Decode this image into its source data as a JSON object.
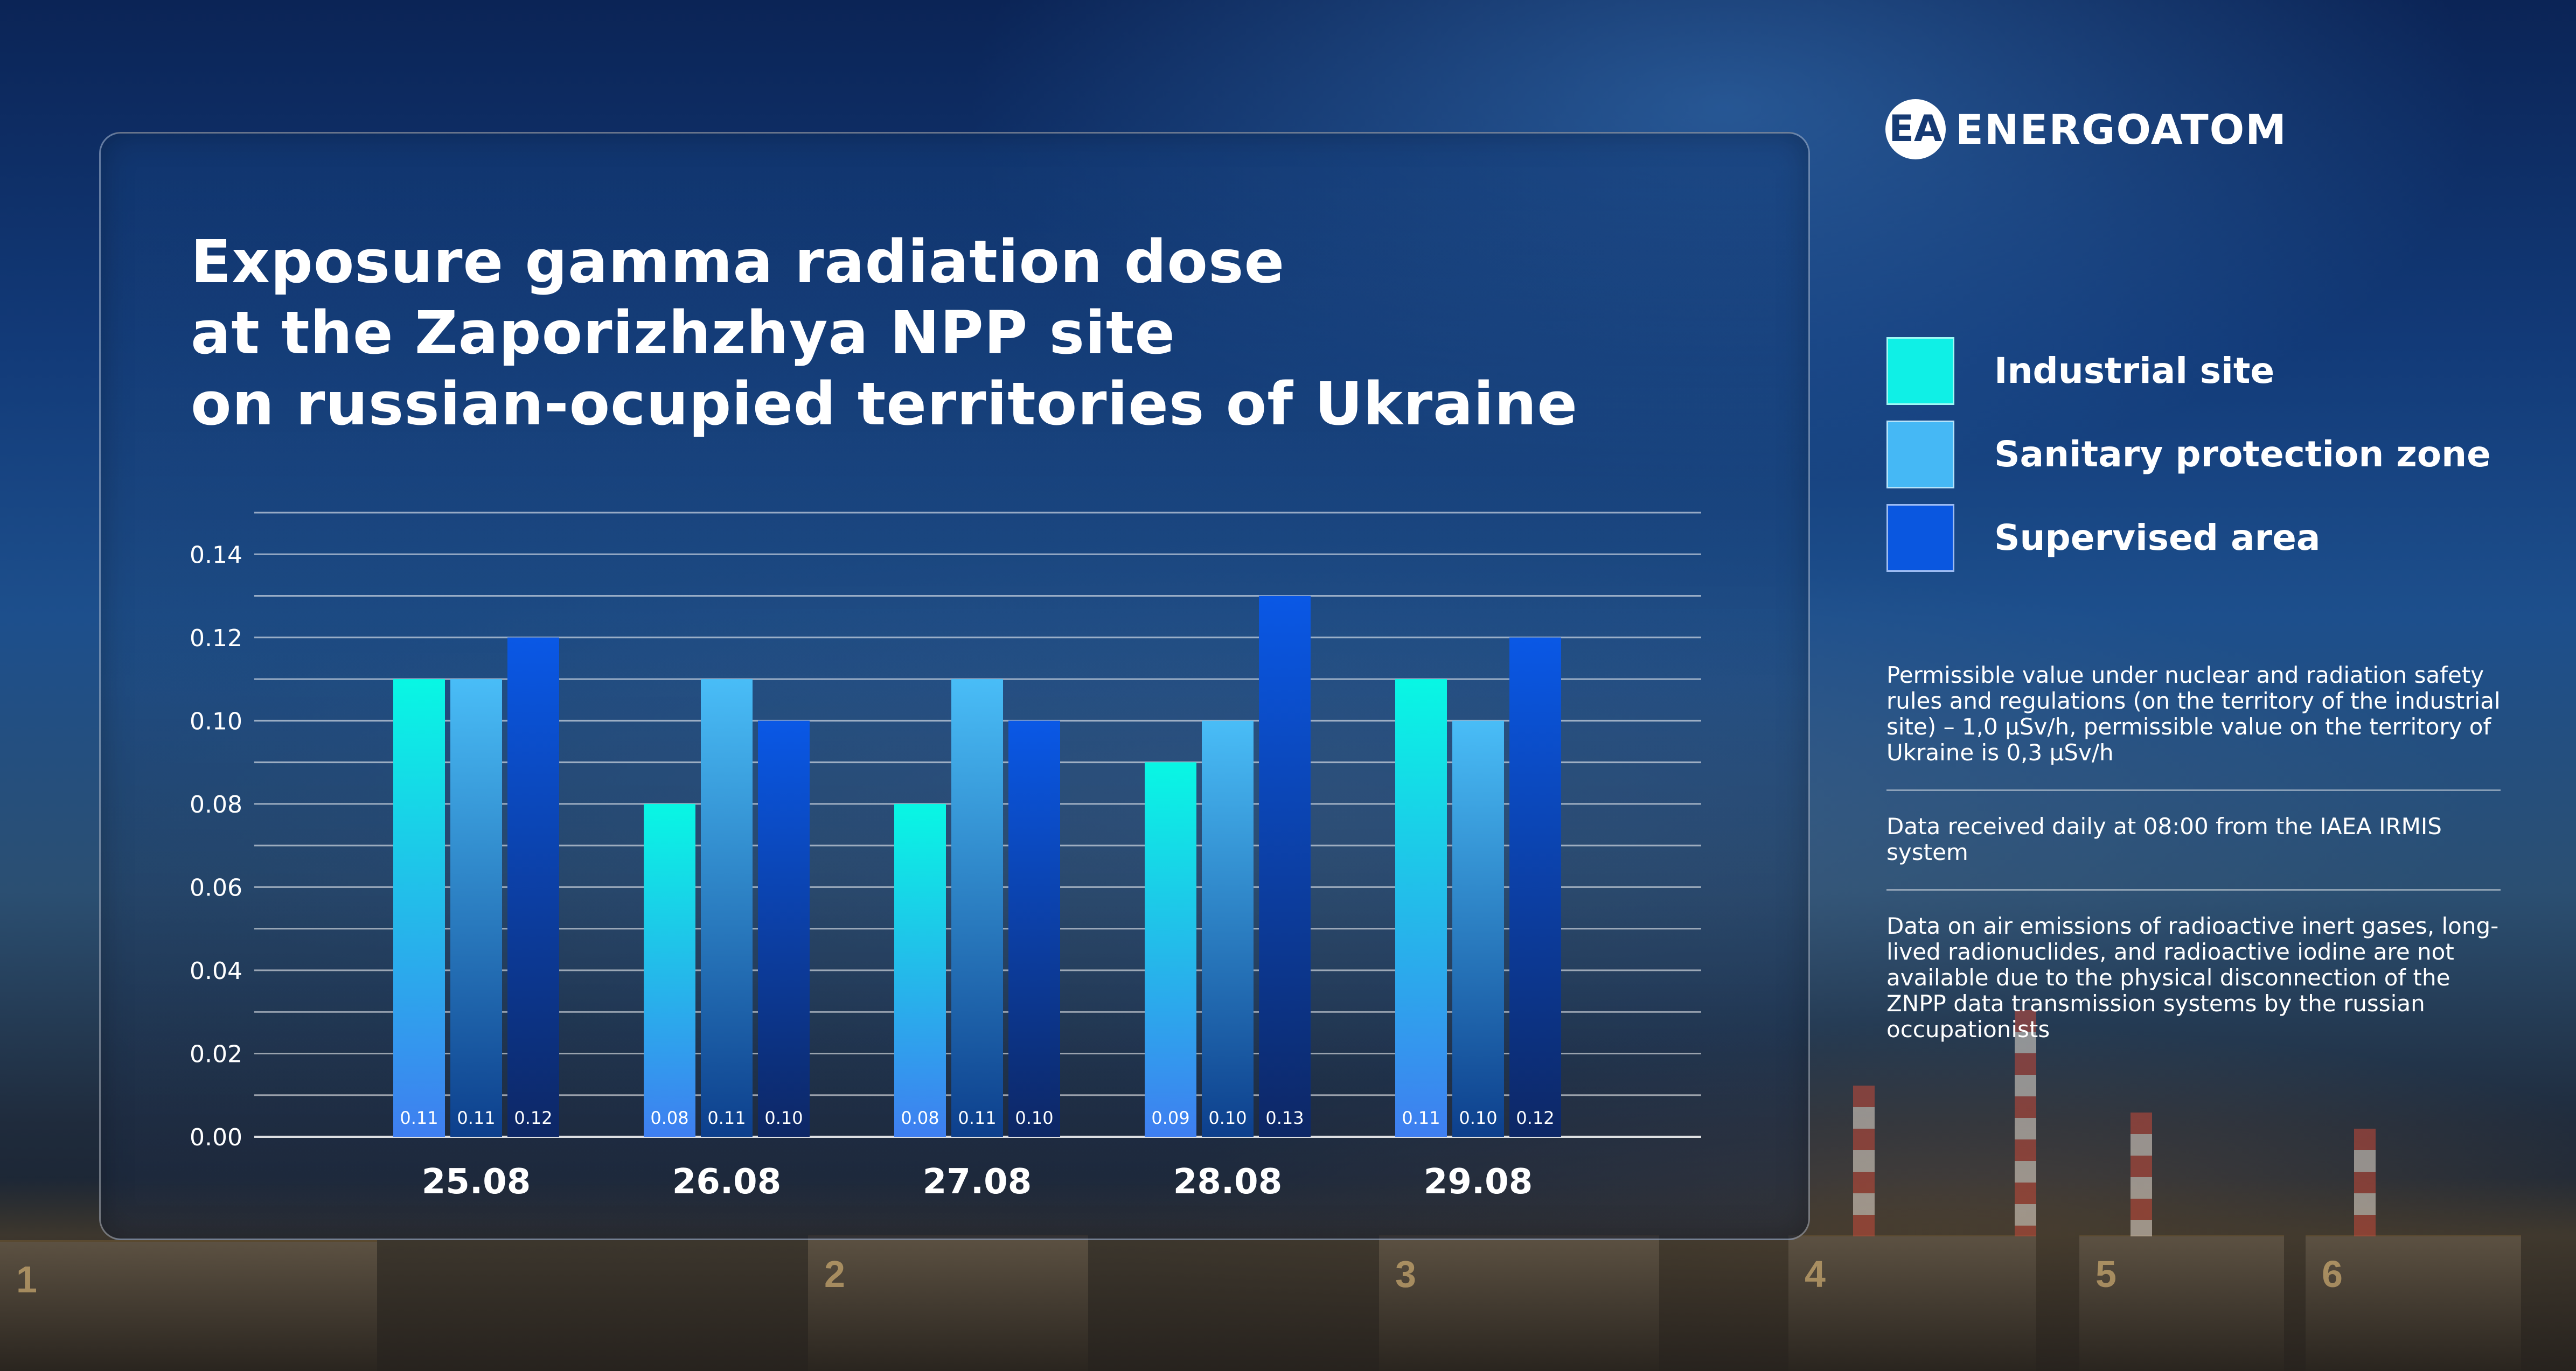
{
  "brand": {
    "name": "ENERGOATOM",
    "mark": "EA"
  },
  "title_lines": [
    "Exposure gamma radiation dose",
    "at the Zaporizhzhya NPP site",
    "on russian-ocupied territories of Ukraine"
  ],
  "legend": [
    {
      "label": "Industrial site",
      "color": "#0ff0e6"
    },
    {
      "label": "Sanitary protection zone",
      "color": "#45b8f5"
    },
    {
      "label": "Supervised area",
      "color": "#0a57e0"
    }
  ],
  "notes": [
    "Permissible value under nuclear and radiation safety rules and regulations (on the territory of the industrial site) – 1,0 μSv/h, permissible value on the territory of Ukraine is 0,3 μSv/h",
    "Data received daily at 08:00 from the IAEA IRMIS system",
    "Data on air emissions of radioactive inert gases, long-lived radionuclides, and radioactive iodine are not available due to the physical disconnection of the ZNPP data transmission systems by the russian occupationists"
  ],
  "chart_data": {
    "type": "bar",
    "title": "Exposure gamma radiation dose at the Zaporizhzhya NPP site on russian-ocupied territories of Ukraine",
    "categories": [
      "25.08",
      "26.08",
      "27.08",
      "28.08",
      "29.08"
    ],
    "series": [
      {
        "name": "Industrial site",
        "values": [
          0.11,
          0.08,
          0.08,
          0.09,
          0.11
        ],
        "labels": [
          "0.11",
          "0.08",
          "0.08",
          "0.09",
          "0.11"
        ]
      },
      {
        "name": "Sanitary protection zone",
        "values": [
          0.11,
          0.11,
          0.11,
          0.1,
          0.1
        ],
        "labels": [
          "0.11",
          "0.11",
          "0.11",
          "0.10",
          "0.10"
        ]
      },
      {
        "name": "Supervised area",
        "values": [
          0.12,
          0.1,
          0.1,
          0.13,
          0.12
        ],
        "labels": [
          "0.12",
          "0.10",
          "0.10",
          "0.13",
          "0.12"
        ]
      }
    ],
    "ylim": [
      0,
      0.15
    ],
    "yticks": [
      0.0,
      0.02,
      0.04,
      0.06,
      0.08,
      0.1,
      0.12,
      0.14
    ],
    "ytick_labels": [
      "0.00",
      "0.02",
      "0.04",
      "0.06",
      "0.08",
      "0.10",
      "0.12",
      "0.14"
    ],
    "grid": true,
    "legend_position": "right"
  }
}
